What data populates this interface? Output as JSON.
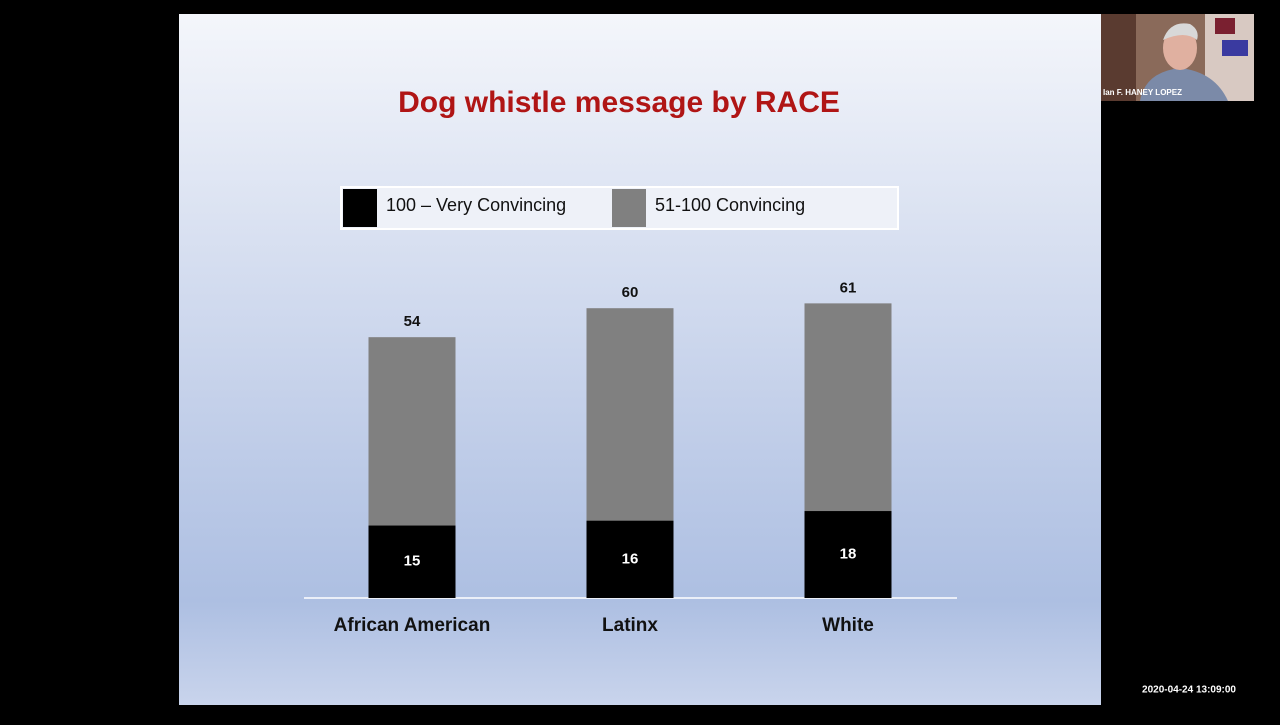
{
  "chart_data": {
    "type": "bar",
    "title": "Dog whistle message by RACE",
    "categories": [
      "African American",
      "Latinx",
      "White"
    ],
    "series": [
      {
        "name": "100 – Very Convincing",
        "color": "#000000",
        "values": [
          15,
          16,
          18
        ]
      },
      {
        "name": "51-100 Convincing",
        "color": "#808080",
        "values": [
          54,
          60,
          61
        ]
      }
    ]
  },
  "video": {
    "participant_name": "Ian F. HANEY LOPEZ",
    "timestamp": "2020-04-24 13:09:00"
  }
}
